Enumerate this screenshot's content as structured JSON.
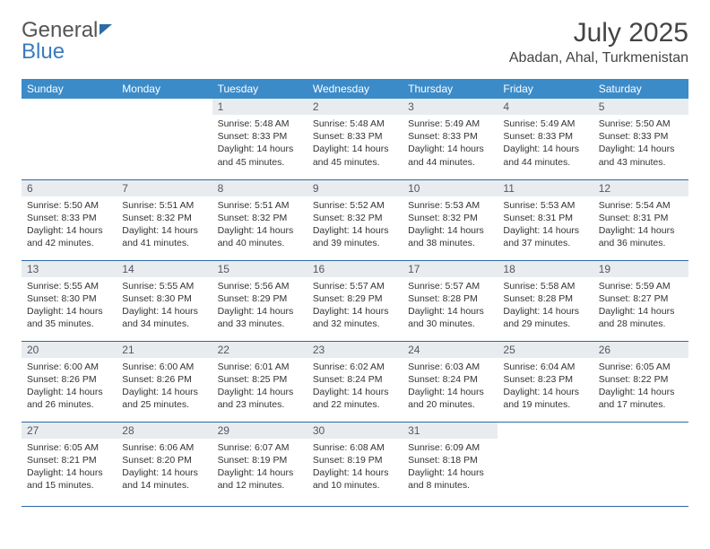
{
  "brand": {
    "part1": "General",
    "part2": "Blue"
  },
  "title": "July 2025",
  "location": "Abadan, Ahal, Turkmenistan",
  "header_bg": "#3b8bc9",
  "border_color": "#2d6aa8",
  "daynum_bg": "#e9ecef",
  "text_color": "#333333",
  "font_family": "Arial",
  "weekdays": [
    "Sunday",
    "Monday",
    "Tuesday",
    "Wednesday",
    "Thursday",
    "Friday",
    "Saturday"
  ],
  "weeks": [
    [
      null,
      null,
      {
        "n": "1",
        "sr": "5:48 AM",
        "ss": "8:33 PM",
        "dl": "14 hours and 45 minutes."
      },
      {
        "n": "2",
        "sr": "5:48 AM",
        "ss": "8:33 PM",
        "dl": "14 hours and 45 minutes."
      },
      {
        "n": "3",
        "sr": "5:49 AM",
        "ss": "8:33 PM",
        "dl": "14 hours and 44 minutes."
      },
      {
        "n": "4",
        "sr": "5:49 AM",
        "ss": "8:33 PM",
        "dl": "14 hours and 44 minutes."
      },
      {
        "n": "5",
        "sr": "5:50 AM",
        "ss": "8:33 PM",
        "dl": "14 hours and 43 minutes."
      }
    ],
    [
      {
        "n": "6",
        "sr": "5:50 AM",
        "ss": "8:33 PM",
        "dl": "14 hours and 42 minutes."
      },
      {
        "n": "7",
        "sr": "5:51 AM",
        "ss": "8:32 PM",
        "dl": "14 hours and 41 minutes."
      },
      {
        "n": "8",
        "sr": "5:51 AM",
        "ss": "8:32 PM",
        "dl": "14 hours and 40 minutes."
      },
      {
        "n": "9",
        "sr": "5:52 AM",
        "ss": "8:32 PM",
        "dl": "14 hours and 39 minutes."
      },
      {
        "n": "10",
        "sr": "5:53 AM",
        "ss": "8:32 PM",
        "dl": "14 hours and 38 minutes."
      },
      {
        "n": "11",
        "sr": "5:53 AM",
        "ss": "8:31 PM",
        "dl": "14 hours and 37 minutes."
      },
      {
        "n": "12",
        "sr": "5:54 AM",
        "ss": "8:31 PM",
        "dl": "14 hours and 36 minutes."
      }
    ],
    [
      {
        "n": "13",
        "sr": "5:55 AM",
        "ss": "8:30 PM",
        "dl": "14 hours and 35 minutes."
      },
      {
        "n": "14",
        "sr": "5:55 AM",
        "ss": "8:30 PM",
        "dl": "14 hours and 34 minutes."
      },
      {
        "n": "15",
        "sr": "5:56 AM",
        "ss": "8:29 PM",
        "dl": "14 hours and 33 minutes."
      },
      {
        "n": "16",
        "sr": "5:57 AM",
        "ss": "8:29 PM",
        "dl": "14 hours and 32 minutes."
      },
      {
        "n": "17",
        "sr": "5:57 AM",
        "ss": "8:28 PM",
        "dl": "14 hours and 30 minutes."
      },
      {
        "n": "18",
        "sr": "5:58 AM",
        "ss": "8:28 PM",
        "dl": "14 hours and 29 minutes."
      },
      {
        "n": "19",
        "sr": "5:59 AM",
        "ss": "8:27 PM",
        "dl": "14 hours and 28 minutes."
      }
    ],
    [
      {
        "n": "20",
        "sr": "6:00 AM",
        "ss": "8:26 PM",
        "dl": "14 hours and 26 minutes."
      },
      {
        "n": "21",
        "sr": "6:00 AM",
        "ss": "8:26 PM",
        "dl": "14 hours and 25 minutes."
      },
      {
        "n": "22",
        "sr": "6:01 AM",
        "ss": "8:25 PM",
        "dl": "14 hours and 23 minutes."
      },
      {
        "n": "23",
        "sr": "6:02 AM",
        "ss": "8:24 PM",
        "dl": "14 hours and 22 minutes."
      },
      {
        "n": "24",
        "sr": "6:03 AM",
        "ss": "8:24 PM",
        "dl": "14 hours and 20 minutes."
      },
      {
        "n": "25",
        "sr": "6:04 AM",
        "ss": "8:23 PM",
        "dl": "14 hours and 19 minutes."
      },
      {
        "n": "26",
        "sr": "6:05 AM",
        "ss": "8:22 PM",
        "dl": "14 hours and 17 minutes."
      }
    ],
    [
      {
        "n": "27",
        "sr": "6:05 AM",
        "ss": "8:21 PM",
        "dl": "14 hours and 15 minutes."
      },
      {
        "n": "28",
        "sr": "6:06 AM",
        "ss": "8:20 PM",
        "dl": "14 hours and 14 minutes."
      },
      {
        "n": "29",
        "sr": "6:07 AM",
        "ss": "8:19 PM",
        "dl": "14 hours and 12 minutes."
      },
      {
        "n": "30",
        "sr": "6:08 AM",
        "ss": "8:19 PM",
        "dl": "14 hours and 10 minutes."
      },
      {
        "n": "31",
        "sr": "6:09 AM",
        "ss": "8:18 PM",
        "dl": "14 hours and 8 minutes."
      },
      null,
      null
    ]
  ],
  "labels": {
    "sunrise": "Sunrise:",
    "sunset": "Sunset:",
    "daylight": "Daylight:"
  }
}
